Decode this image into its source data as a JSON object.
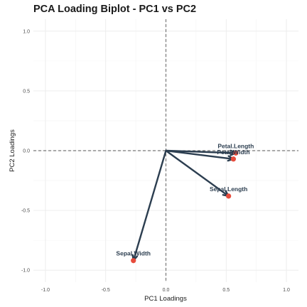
{
  "chart_data": {
    "type": "scatter",
    "title": "PCA Loading Biplot - PC1 vs PC2",
    "xlabel": "PC1 Loadings",
    "ylabel": "PC2 Loadings",
    "xlim": [
      -1.1,
      1.1
    ],
    "ylim": [
      -1.1,
      1.1
    ],
    "x_ticks": [
      -1.0,
      -0.5,
      0.0,
      0.5,
      1.0
    ],
    "y_ticks": [
      -1.0,
      -0.5,
      0.0,
      0.5,
      1.0
    ],
    "x_tick_labels": [
      "-1.0",
      "-0.5",
      "0.0",
      "0.5",
      "1.0"
    ],
    "y_tick_labels": [
      "-1.0",
      "-0.5",
      "0.0",
      "0.5",
      "1.0"
    ],
    "grid": true,
    "reference_lines": {
      "x": 0,
      "y": 0,
      "style": "dashed"
    },
    "points": [
      {
        "label": "Sepal.Length",
        "x": 0.52,
        "y": -0.38
      },
      {
        "label": "Sepal.Width",
        "x": -0.27,
        "y": -0.92
      },
      {
        "label": "Petal.Length",
        "x": 0.58,
        "y": -0.02
      },
      {
        "label": "Petal.Width",
        "x": 0.56,
        "y": -0.07
      }
    ],
    "colors": {
      "arrow": "#2c3e50",
      "point": "#e74c3c"
    }
  }
}
